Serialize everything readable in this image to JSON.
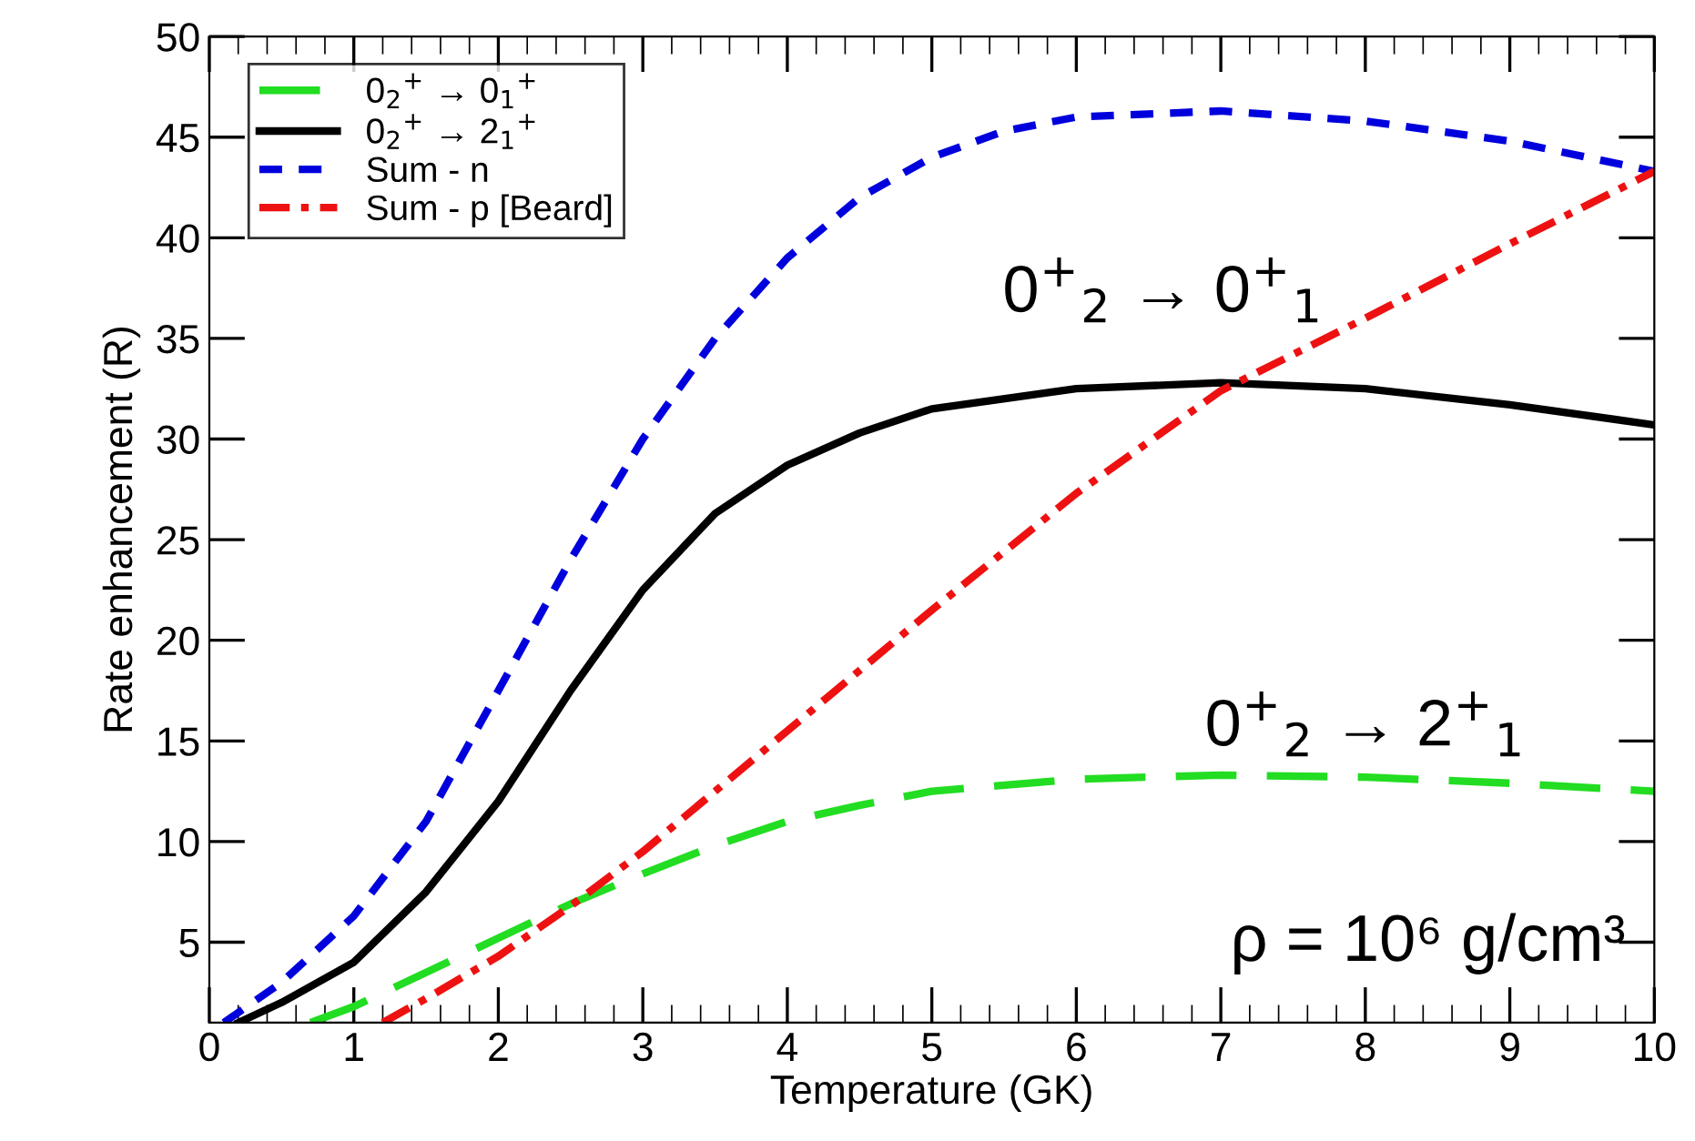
{
  "chart_data": {
    "type": "line",
    "xlabel": "Temperature (GK)",
    "ylabel": "Rate enhancement (R)",
    "xlim": [
      0,
      10
    ],
    "ylim": [
      1,
      50
    ],
    "xticks": [
      0,
      1,
      2,
      3,
      4,
      5,
      6,
      7,
      8,
      9,
      10
    ],
    "yticks": [
      5,
      10,
      15,
      20,
      25,
      30,
      35,
      40,
      45,
      50
    ],
    "grid": false,
    "legend": "top left",
    "marker": "none",
    "series": [
      {
        "name": "0$_{2}$$^{+}$ → 0$_{1}$$^{+}$",
        "color": "#22dd22",
        "line_style": "long_dashed",
        "x": [
          0.7,
          1,
          1.5,
          2,
          2.5,
          3,
          3.5,
          4,
          4.5,
          5,
          6,
          7,
          8,
          9,
          10
        ],
        "values": [
          1,
          1.8,
          3.5,
          5.2,
          6.9,
          8.4,
          9.8,
          11,
          11.8,
          12.5,
          13.1,
          13.3,
          13.2,
          12.9,
          12.5
        ]
      },
      {
        "name": "0$_{2}$$^{+}$ → 2$_{1}$$^{+}$",
        "color": "#000000",
        "line_style": "solid",
        "x": [
          0.2,
          0.5,
          1,
          1.5,
          2,
          2.5,
          3,
          3.5,
          4,
          4.5,
          5,
          6,
          7,
          8,
          9,
          10
        ],
        "values": [
          1,
          2,
          4,
          7.5,
          12,
          17.5,
          22.5,
          26.3,
          28.7,
          30.3,
          31.5,
          32.5,
          32.8,
          32.5,
          31.7,
          30.7
        ]
      },
      {
        "name": "Sum - n",
        "color": "#0000dd",
        "line_style": "dashed",
        "x": [
          0.1,
          0.5,
          1,
          1.5,
          2,
          2.5,
          3,
          3.5,
          4,
          4.5,
          5,
          5.5,
          6,
          7,
          8,
          9,
          10
        ],
        "values": [
          1,
          3,
          6.3,
          11,
          17.5,
          24,
          30,
          35,
          39,
          42,
          44,
          45.3,
          46,
          46.3,
          45.8,
          44.8,
          43.3
        ]
      },
      {
        "name": "Sum - p [Beard]",
        "color": "#ee1111",
        "line_style": "dashdot",
        "x": [
          1.2,
          1.5,
          2,
          2.5,
          3,
          3.5,
          4,
          4.5,
          5,
          6,
          7,
          8,
          9,
          10
        ],
        "values": [
          1,
          2.2,
          4.3,
          6.8,
          9.5,
          12.5,
          15.5,
          18.5,
          21.5,
          27.3,
          32.4,
          36,
          39.7,
          43.3
        ]
      }
    ],
    "annotations": [
      "0$^{+}$$_{2}$ → 0$^{+}$$_{1}$",
      "0$^{+}$$_{2}$ → 2$^{+}$$_{1}$",
      "ρ = 10⁶ g/cm³"
    ]
  }
}
